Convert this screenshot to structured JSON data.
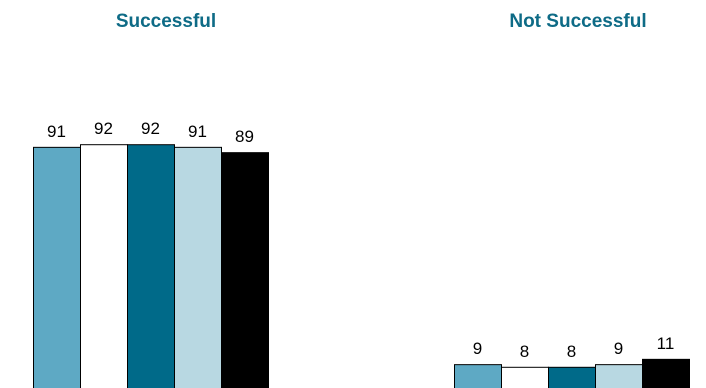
{
  "chart_data": {
    "type": "bar",
    "categories": [
      "Successful",
      "Not Successful"
    ],
    "series": [
      {
        "values": [
          91,
          9
        ],
        "color": "#5ea9c4"
      },
      {
        "values": [
          92,
          8
        ],
        "color": "#ffffff"
      },
      {
        "values": [
          92,
          8
        ],
        "color": "#006a89"
      },
      {
        "values": [
          91,
          9
        ],
        "color": "#b8d8e2"
      },
      {
        "values": [
          89,
          11
        ],
        "color": "#000000"
      }
    ],
    "title": "",
    "xlabel": "",
    "ylabel": "",
    "ylim": [
      0,
      100
    ],
    "grid": false,
    "legend": "none",
    "category_label_position": "top",
    "category_label_color": "#0e6b86",
    "bar_outline_color": "#000000"
  }
}
